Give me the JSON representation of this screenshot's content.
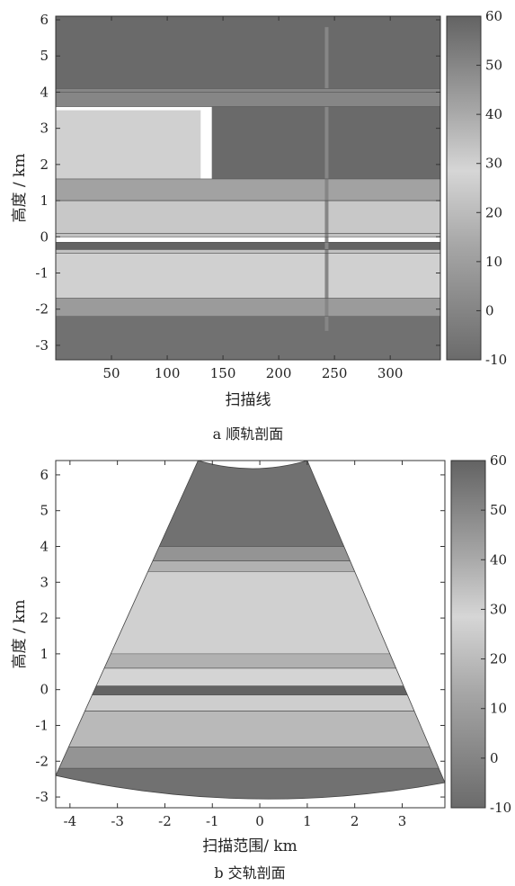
{
  "chart_data": [
    {
      "type": "heatmap",
      "panel": "a",
      "caption": "a 顺轨剖面",
      "xlabel": "扫描线",
      "ylabel": "高度 / km",
      "xlim": [
        0,
        345
      ],
      "ylim": [
        -3.4,
        6.1
      ],
      "xticks": [
        50,
        100,
        150,
        200,
        250,
        300
      ],
      "yticks": [
        -3,
        -2,
        -1,
        0,
        1,
        2,
        3,
        4,
        5,
        6
      ],
      "colorbar": {
        "min": -10,
        "max": 60,
        "ticks": [
          -10,
          0,
          10,
          20,
          30,
          40,
          50,
          60
        ]
      },
      "grid": false,
      "layers": [
        {
          "name": "upper-background",
          "y_range": [
            4.0,
            6.1
          ],
          "value": 58
        },
        {
          "name": "top-boundary-layer",
          "y_range": [
            3.6,
            4.1
          ],
          "value": 50
        },
        {
          "name": "upper-cloud-core",
          "y_range": [
            1.6,
            3.6
          ],
          "x_range": [
            140,
            345
          ],
          "value": 58
        },
        {
          "name": "left-light-region",
          "y_range": [
            0.5,
            3.5
          ],
          "x_range": [
            0,
            130
          ],
          "value": 30
        },
        {
          "name": "mid-layer",
          "y_range": [
            1.0,
            1.6
          ],
          "value": 42
        },
        {
          "name": "fringe-layer",
          "y_range": [
            0.1,
            1.0
          ],
          "value": 32
        },
        {
          "name": "surface-band-upper",
          "y_range": [
            0.0,
            0.1
          ],
          "value": 22
        },
        {
          "name": "surface-echo",
          "y_range": [
            -0.35,
            -0.15
          ],
          "value": 60
        },
        {
          "name": "surface-band-lower",
          "y_range": [
            -0.45,
            -0.35
          ],
          "value": 22
        },
        {
          "name": "mirror-fringe",
          "y_range": [
            -1.7,
            -0.45
          ],
          "value": 30
        },
        {
          "name": "mirror-layer",
          "y_range": [
            -2.2,
            -1.7
          ],
          "value": 44
        },
        {
          "name": "lower-background",
          "y_range": [
            -3.4,
            -2.2
          ],
          "value": 56
        },
        {
          "name": "vertical-spike",
          "x": 243,
          "y_range": [
            -2.6,
            5.8
          ],
          "value": 50
        }
      ]
    },
    {
      "type": "heatmap",
      "panel": "b",
      "caption": "b 交轨剖面",
      "xlabel": "扫描范围/ km",
      "ylabel": "高度 / km",
      "xlim": [
        -4.3,
        3.9
      ],
      "ylim": [
        -3.3,
        6.4
      ],
      "xticks": [
        -4,
        -3,
        -2,
        -1,
        0,
        1,
        2,
        3
      ],
      "yticks": [
        -3,
        -2,
        -1,
        0,
        1,
        2,
        3,
        4,
        5,
        6
      ],
      "colorbar": {
        "min": -10,
        "max": 60,
        "ticks": [
          -10,
          0,
          10,
          20,
          30,
          40,
          50,
          60
        ]
      },
      "grid": false,
      "fan_edges": {
        "top_left": [
          -1.3,
          6.4
        ],
        "top_right": [
          1.0,
          6.4
        ],
        "bottom_left": [
          -4.3,
          -2.4
        ],
        "bottom_right": [
          3.9,
          -2.6
        ]
      },
      "layers": [
        {
          "name": "upper-core",
          "y_range": [
            4.0,
            6.4
          ],
          "value": 56
        },
        {
          "name": "upper-transition",
          "y_range": [
            3.6,
            4.0
          ],
          "value": 46
        },
        {
          "name": "mid-cloud",
          "y_range": [
            0.6,
            3.6
          ],
          "value": 38
        },
        {
          "name": "light-patches",
          "y_range": [
            1.0,
            3.3
          ],
          "value": 30
        },
        {
          "name": "fringe-upper",
          "y_range": [
            0.1,
            0.6
          ],
          "value": 28
        },
        {
          "name": "surface-echo",
          "y_range": [
            -0.15,
            0.1
          ],
          "value": 60
        },
        {
          "name": "fringe-lower",
          "y_range": [
            -0.6,
            -0.15
          ],
          "value": 26
        },
        {
          "name": "mirror-cloud",
          "y_range": [
            -1.6,
            -0.6
          ],
          "value": 36
        },
        {
          "name": "mirror-layer",
          "y_range": [
            -2.2,
            -1.6
          ],
          "value": 46
        },
        {
          "name": "lower-core",
          "y_range": [
            -3.3,
            -2.2
          ],
          "value": 56
        }
      ]
    }
  ]
}
